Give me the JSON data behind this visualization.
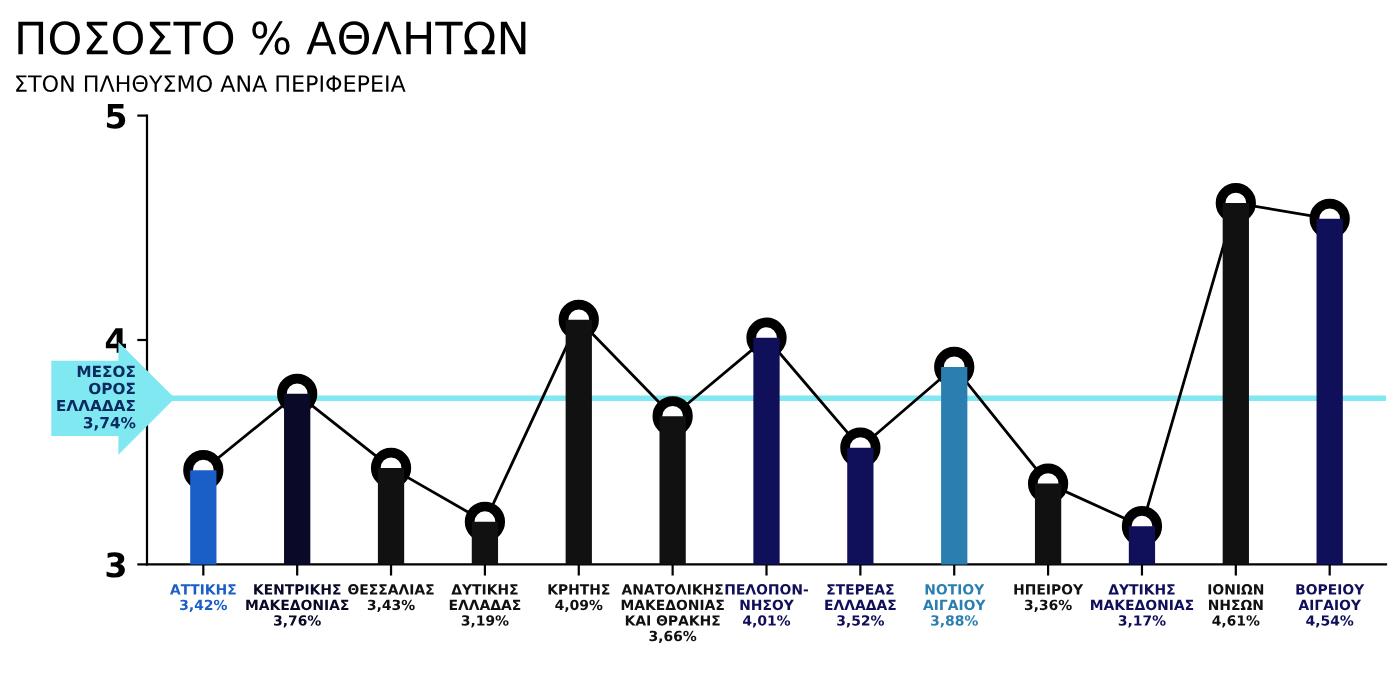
{
  "chart_data": {
    "type": "bar",
    "title": "ΠΟΣΟΣΤΟ % ΑΘΛΗΤΩΝ",
    "subtitle": "ΣΤΟΝ ΠΛΗΘΥΣΜΟ ΑΝΑ ΠΕΡΙΦΕΡΕΙΑ",
    "categories": [
      "ΑΤΤΙΚΗΣ\n3,42%",
      "ΚΕΝΤΡΙΚΗΣ\nΜΑΚΕΔΟΝΙΑΣ\n3,76%",
      "ΘΕΣΣΑΛΙΑΣ\n3,43%",
      "ΔΥΤΙΚΗΣ\nΕΛΛΑΔΑΣ\n3,19%",
      "ΚΡΗΤΗΣ\n4,09%",
      "ΑΝΑΤΟΛΙΚΗΣ\nΜΑΚΕΔΟΝΙΑΣ\nΚΑΙ ΘΡΑΚΗΣ\n3,66%",
      "ΠΕΛΟΠΟΝ-\nΝΗΣΟΥ\n4,01%",
      "ΣΤΕΡΕΑΣ\nΕΛΛΑΔΑΣ\n3,52%",
      "ΝΟΤΙΟΥ\nΑΙΓΑΙΟΥ\n3,88%",
      "ΗΠΕΙΡΟΥ\n3,36%",
      "ΔΥΤΙΚΗΣ\nΜΑΚΕΔΟΝΙΑΣ\n3,17%",
      "ΙΟΝΙΩΝ\nΝΗΣΩΝ\n4,61%",
      "ΒΟΡΕΙΟΥ\nΑΙΓΑΙΟΥ\n4,54%"
    ],
    "series": [
      {
        "colors": [
          "#1a5fc8",
          "#0a0a28",
          "#111111",
          "#111111",
          "#111111",
          "#111111",
          "#10105a",
          "#10105a",
          "#2a7fb0",
          "#111111",
          "#10105a",
          "#111111",
          "#10105a"
        ],
        "values": [
          3.42,
          3.76,
          3.43,
          3.19,
          4.09,
          3.66,
          4.01,
          3.52,
          3.88,
          3.36,
          3.17,
          4.61,
          4.54
        ]
      },
      {
        "type": "line",
        "color": "#000000",
        "marker": "circle",
        "values": [
          3.42,
          3.76,
          3.43,
          3.19,
          4.09,
          3.66,
          4.01,
          3.52,
          3.88,
          3.36,
          3.17,
          4.61,
          4.54
        ]
      }
    ],
    "ylim": [
      3,
      5
    ],
    "yticks": [
      3,
      4,
      5
    ],
    "grid": false,
    "ref_lines": [
      {
        "axis": "y",
        "value": 3.74,
        "label": "ΜΕΣΟΣ\nΟΡΟΣ\nΕΛΛΑΔΑΣ\n3,74%",
        "color": "#7fe8f0"
      }
    ]
  }
}
